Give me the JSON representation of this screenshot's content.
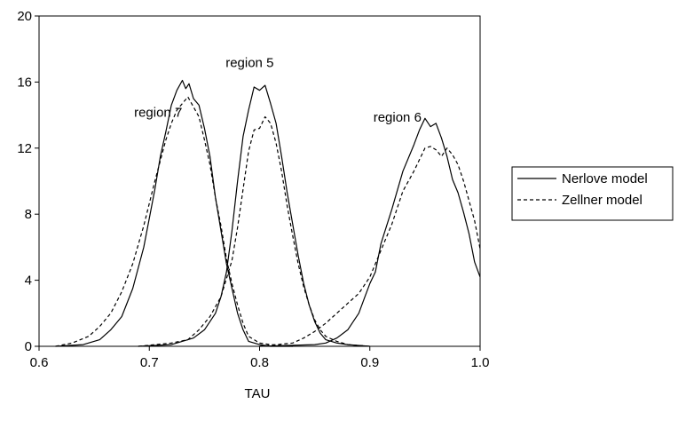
{
  "chart_data": {
    "type": "line",
    "xlabel": "TAU",
    "ylabel": "",
    "xlim": [
      0.6,
      1.0
    ],
    "ylim": [
      0,
      20
    ],
    "x_ticks": [
      0.6,
      0.7,
      0.8,
      0.9,
      1.0
    ],
    "x_tick_labels": [
      "0.6",
      "0.7",
      "0.8",
      "0.9",
      "1.0"
    ],
    "y_ticks": [
      0,
      4,
      8,
      12,
      16,
      20
    ],
    "y_tick_labels": [
      "0",
      "4",
      "8",
      "12",
      "16",
      "20"
    ],
    "grid": false,
    "legend_position": "right",
    "legend": [
      {
        "label": "Nerlove model",
        "style": "solid"
      },
      {
        "label": "Zellner model",
        "style": "dashed"
      }
    ],
    "annotations": [
      {
        "text": "region 7",
        "x": 0.708,
        "y": 13.9
      },
      {
        "text": "region 5",
        "x": 0.791,
        "y": 16.9
      },
      {
        "text": "region 6",
        "x": 0.925,
        "y": 13.6
      }
    ],
    "series": [
      {
        "name": "Nerlove model",
        "region": "region 7",
        "style": "solid",
        "x": [
          0.615,
          0.64,
          0.655,
          0.665,
          0.675,
          0.685,
          0.695,
          0.705,
          0.71,
          0.715,
          0.72,
          0.725,
          0.73,
          0.733,
          0.736,
          0.74,
          0.745,
          0.75,
          0.755,
          0.76,
          0.765,
          0.77,
          0.775,
          0.78,
          0.785,
          0.79,
          0.8,
          0.81,
          0.83
        ],
        "y": [
          0,
          0.1,
          0.4,
          1.0,
          1.8,
          3.5,
          6.0,
          9.5,
          11.5,
          13.0,
          14.6,
          15.5,
          16.1,
          15.6,
          15.9,
          15.0,
          14.6,
          13.2,
          11.5,
          9.0,
          7.0,
          5.0,
          3.5,
          2.0,
          1.0,
          0.3,
          0.1,
          0,
          0
        ]
      },
      {
        "name": "Zellner model",
        "region": "region 7",
        "style": "dashed",
        "x": [
          0.615,
          0.63,
          0.645,
          0.655,
          0.665,
          0.675,
          0.685,
          0.695,
          0.705,
          0.715,
          0.72,
          0.725,
          0.73,
          0.735,
          0.74,
          0.745,
          0.75,
          0.755,
          0.76,
          0.765,
          0.77,
          0.775,
          0.78,
          0.785,
          0.79,
          0.8,
          0.81,
          0.83
        ],
        "y": [
          0,
          0.2,
          0.6,
          1.2,
          2.0,
          3.3,
          5.0,
          7.3,
          10.0,
          12.5,
          13.5,
          14.3,
          14.7,
          15.1,
          14.5,
          13.9,
          12.5,
          11.0,
          9.0,
          7.3,
          5.3,
          3.8,
          2.5,
          1.4,
          0.6,
          0.2,
          0.1,
          0
        ]
      },
      {
        "name": "Nerlove model",
        "region": "region 5",
        "style": "solid",
        "x": [
          0.69,
          0.72,
          0.74,
          0.75,
          0.76,
          0.765,
          0.77,
          0.775,
          0.78,
          0.785,
          0.79,
          0.795,
          0.8,
          0.805,
          0.81,
          0.815,
          0.82,
          0.825,
          0.83,
          0.835,
          0.84,
          0.845,
          0.85,
          0.855,
          0.86,
          0.865,
          0.87,
          0.88,
          0.9
        ],
        "y": [
          0,
          0.1,
          0.5,
          1.0,
          2.0,
          3.0,
          4.5,
          7.0,
          10.0,
          12.7,
          14.3,
          15.7,
          15.5,
          15.8,
          14.7,
          13.5,
          11.5,
          9.3,
          7.4,
          5.5,
          3.8,
          2.5,
          1.5,
          0.8,
          0.4,
          0.3,
          0.2,
          0.1,
          0
        ]
      },
      {
        "name": "Zellner model",
        "region": "region 5",
        "style": "dashed",
        "x": [
          0.69,
          0.72,
          0.735,
          0.745,
          0.755,
          0.765,
          0.775,
          0.78,
          0.785,
          0.79,
          0.795,
          0.8,
          0.805,
          0.81,
          0.815,
          0.82,
          0.825,
          0.83,
          0.835,
          0.84,
          0.845,
          0.85,
          0.855,
          0.86,
          0.87,
          0.88,
          0.9
        ],
        "y": [
          0,
          0.2,
          0.4,
          1.0,
          1.8,
          3.0,
          5.2,
          7.2,
          9.5,
          11.8,
          13.1,
          13.2,
          13.9,
          13.5,
          12.3,
          10.6,
          8.5,
          6.7,
          5.0,
          3.6,
          2.5,
          1.6,
          1.0,
          0.6,
          0.3,
          0.1,
          0
        ]
      },
      {
        "name": "Nerlove model",
        "region": "region 6",
        "style": "solid",
        "x": [
          0.8,
          0.85,
          0.86,
          0.87,
          0.88,
          0.885,
          0.89,
          0.895,
          0.9,
          0.905,
          0.91,
          0.92,
          0.93,
          0.94,
          0.945,
          0.95,
          0.955,
          0.96,
          0.965,
          0.97,
          0.975,
          0.98,
          0.985,
          0.99,
          0.995,
          1.0
        ],
        "y": [
          0,
          0.1,
          0.2,
          0.5,
          1.0,
          1.5,
          2.0,
          2.9,
          3.8,
          4.5,
          6.2,
          8.3,
          10.6,
          12.2,
          13.1,
          13.8,
          13.3,
          13.5,
          12.6,
          11.5,
          10.1,
          9.3,
          8.1,
          6.8,
          5.1,
          4.2
        ]
      },
      {
        "name": "Zellner model",
        "region": "region 6",
        "style": "dashed",
        "x": [
          0.8,
          0.83,
          0.84,
          0.85,
          0.86,
          0.87,
          0.88,
          0.89,
          0.9,
          0.91,
          0.92,
          0.93,
          0.94,
          0.95,
          0.955,
          0.96,
          0.965,
          0.97,
          0.975,
          0.98,
          0.985,
          0.99,
          0.995,
          1.0
        ],
        "y": [
          0,
          0.2,
          0.5,
          0.9,
          1.4,
          2.0,
          2.6,
          3.2,
          4.2,
          5.8,
          7.4,
          9.4,
          10.6,
          12.0,
          12.1,
          11.9,
          11.5,
          12.0,
          11.6,
          11.0,
          10.0,
          8.8,
          7.6,
          5.9
        ]
      }
    ]
  }
}
